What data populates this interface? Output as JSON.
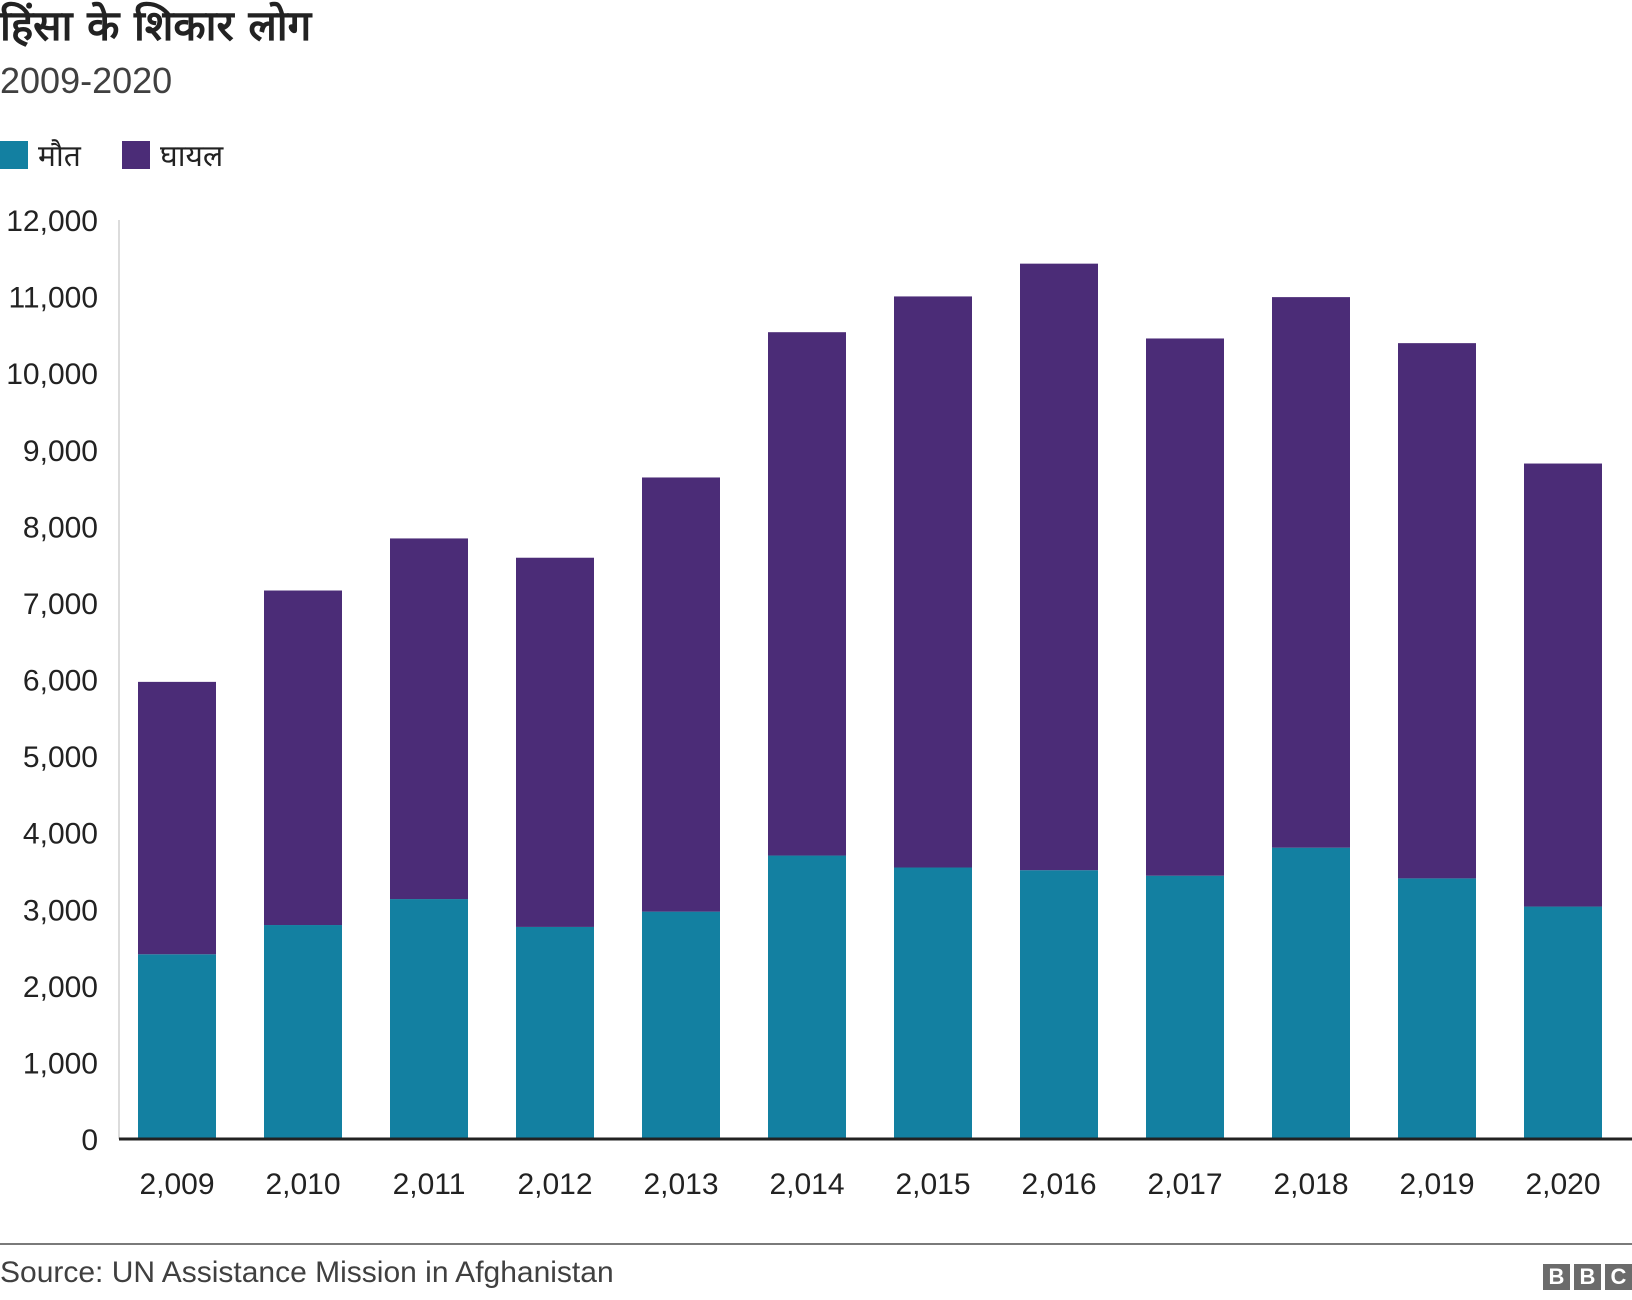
{
  "chart_data": {
    "type": "bar",
    "stacked": true,
    "title": "हिंसा के शिकार लोग",
    "subtitle": "2009-2020",
    "categories": [
      "2,009",
      "2,010",
      "2,011",
      "2,012",
      "2,013",
      "2,014",
      "2,015",
      "2,016",
      "2,017",
      "2,018",
      "2,019",
      "2,020"
    ],
    "series": [
      {
        "name": "मौत",
        "color": "#1380a1",
        "values": [
          2412,
          2794,
          3133,
          2769,
          2969,
          3701,
          3545,
          3510,
          3438,
          3804,
          3403,
          3035
        ]
      },
      {
        "name": "घायल",
        "color": "#4b2c77",
        "values": [
          3557,
          4368,
          4709,
          4821,
          5669,
          6834,
          7457,
          7920,
          7015,
          7189,
          6989,
          5785
        ]
      }
    ],
    "ylim": [
      0,
      12000
    ],
    "yticks": [
      "0",
      "1,000",
      "2,000",
      "3,000",
      "4,000",
      "5,000",
      "6,000",
      "7,000",
      "8,000",
      "9,000",
      "10,000",
      "11,000",
      "12,000"
    ],
    "grid": false,
    "legend_position": "top-left",
    "xlabel": "",
    "ylabel": ""
  },
  "footer": {
    "source": "Source: UN Assistance Mission in Afghanistan",
    "logo": [
      "B",
      "B",
      "C"
    ]
  }
}
